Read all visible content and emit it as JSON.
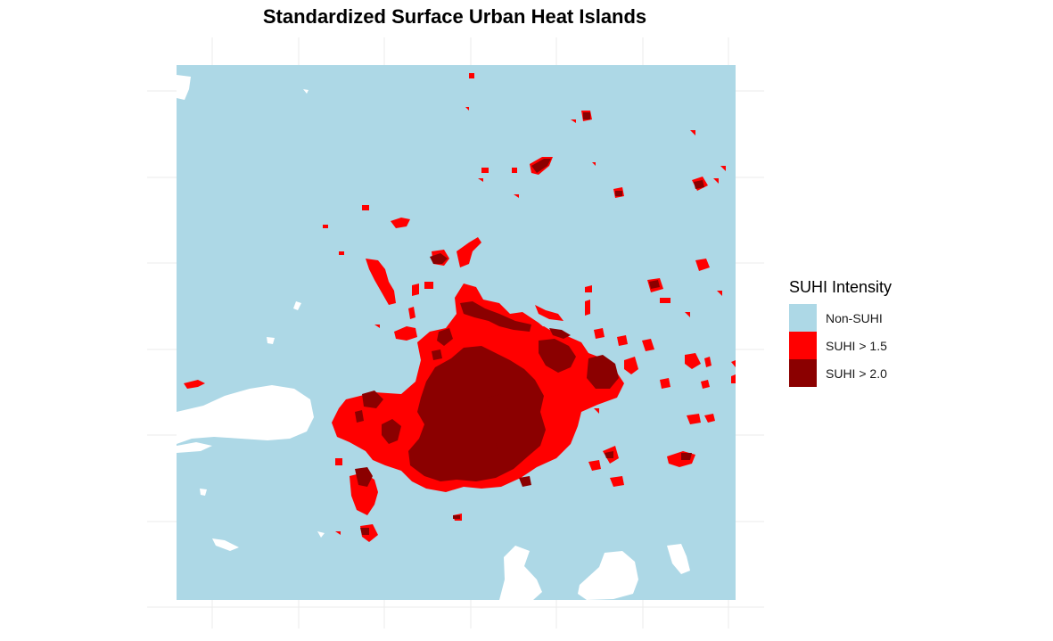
{
  "title": "Standardized Surface Urban Heat Islands",
  "legend": {
    "title": "SUHI Intensity",
    "items": [
      {
        "label": "Non-SUHI",
        "color": "#add8e6"
      },
      {
        "label": "SUHI > 1.5",
        "color": "#ff0000"
      },
      {
        "label": "SUHI > 2.0",
        "color": "#8b0000"
      }
    ]
  },
  "colors": {
    "background": "#ffffff",
    "land": "#add8e6",
    "water": "#ffffff",
    "grid": "#ebebeb"
  }
}
